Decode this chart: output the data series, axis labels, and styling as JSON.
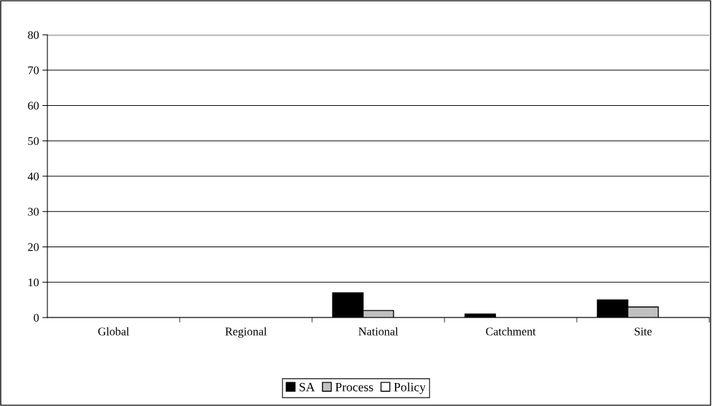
{
  "chart_data": {
    "type": "bar",
    "categories": [
      "Global",
      "Regional",
      "National",
      "Catchment",
      "Site"
    ],
    "series": [
      {
        "name": "SA",
        "color": "#000000",
        "values": [
          0,
          0,
          7,
          1,
          5
        ]
      },
      {
        "name": "Process",
        "color": "#c0c0c0",
        "values": [
          0,
          0,
          2,
          0,
          3
        ]
      },
      {
        "name": "Policy",
        "color": "#ffffff",
        "values": [
          0,
          0,
          0,
          0,
          0
        ]
      }
    ],
    "ylim": [
      0,
      80
    ],
    "yticks": [
      0,
      10,
      20,
      30,
      40,
      50,
      60,
      70,
      80
    ],
    "grid": "y",
    "legend": "bottom"
  }
}
